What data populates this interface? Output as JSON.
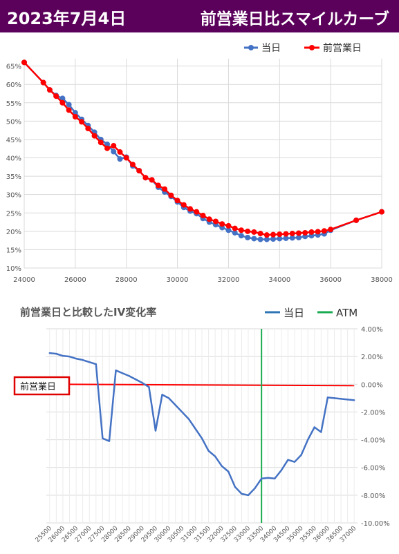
{
  "header": {
    "date": "2023年7月4日",
    "title": "前営業日比スマイルカーブ"
  },
  "colors": {
    "banner": "#5b005b",
    "today": "#4472c4",
    "prev": "#ff0000",
    "atm": "#1aab50",
    "iv_line": "#4472c4",
    "zero_line": "#ff0000"
  },
  "chart_data": [
    {
      "type": "line",
      "title": "",
      "legend_position": "top",
      "xlim": [
        24000,
        38000
      ],
      "ylim": [
        10,
        67
      ],
      "x_ticks": [
        "24000",
        "26000",
        "28000",
        "30000",
        "32000",
        "34000",
        "36000",
        "38000"
      ],
      "y_ticks": [
        "10%",
        "15%",
        "20%",
        "25%",
        "30%",
        "35%",
        "40%",
        "45%",
        "50%",
        "55%",
        "60%",
        "65%"
      ],
      "grid": true,
      "series": [
        {
          "name": "当日",
          "x": [
            24000,
            24750,
            25000,
            25250,
            25500,
            25750,
            26000,
            26250,
            26500,
            26750,
            27000,
            27250,
            27500,
            27750,
            28000,
            28250,
            28500,
            28750,
            29000,
            29250,
            29500,
            29750,
            30000,
            30250,
            30500,
            30750,
            31000,
            31250,
            31500,
            31750,
            32000,
            32250,
            32500,
            32750,
            33000,
            33250,
            33500,
            33750,
            34000,
            34250,
            34500,
            34750,
            35000,
            35250,
            35500,
            35750,
            36000,
            37000,
            38000
          ],
          "y": [
            66,
            60.5,
            58.5,
            57,
            56.2,
            54.5,
            52.3,
            50.5,
            48.8,
            47,
            45,
            43.7,
            41.7,
            39.7,
            40.2,
            37.8,
            36.5,
            34.6,
            34,
            32,
            30.7,
            29.5,
            28,
            26.5,
            25.5,
            24.8,
            23.5,
            22.5,
            21.8,
            21,
            20.3,
            19.6,
            18.8,
            18.3,
            18,
            17.8,
            17.8,
            17.9,
            18,
            18.1,
            18.2,
            18.3,
            18.6,
            18.8,
            19,
            19.3,
            20.3,
            23,
            25.3
          ]
        },
        {
          "name": "前営業日",
          "x": [
            24000,
            24750,
            25000,
            25250,
            25500,
            25750,
            26000,
            26250,
            26500,
            26750,
            27000,
            27250,
            27500,
            27750,
            28000,
            28250,
            28500,
            28750,
            29000,
            29250,
            29500,
            29750,
            30000,
            30250,
            30500,
            30750,
            31000,
            31250,
            31500,
            31750,
            32000,
            32250,
            32500,
            32750,
            33000,
            33250,
            33500,
            33750,
            34000,
            34250,
            34500,
            34750,
            35000,
            35250,
            35500,
            35750,
            36000,
            37000,
            38000
          ],
          "y": [
            66,
            60.5,
            58.5,
            56.8,
            55,
            53,
            51.2,
            49.8,
            48,
            46,
            44.2,
            42.6,
            43.3,
            41.6,
            40,
            38.2,
            36.5,
            34.6,
            34,
            32.5,
            31.5,
            29.8,
            28.4,
            27.2,
            26.1,
            25.3,
            24.3,
            23.3,
            22.7,
            22,
            21.5,
            20.8,
            20.3,
            20,
            19.8,
            19.4,
            19,
            19.1,
            19.2,
            19.3,
            19.4,
            19.5,
            19.6,
            19.8,
            19.9,
            20.1,
            20.5,
            23,
            25.3
          ]
        }
      ]
    },
    {
      "type": "line",
      "title": "前営業日と比較したIV変化率",
      "legend_position": "top-right",
      "categories": [
        "25500",
        "26000",
        "26500",
        "27000",
        "27500",
        "28000",
        "28500",
        "29000",
        "29500",
        "30000",
        "30500",
        "31000",
        "31500",
        "32000",
        "32500",
        "33000",
        "33500",
        "34000",
        "34500",
        "35000",
        "35500",
        "36000",
        "36500",
        "37000"
      ],
      "category_x": [
        25500,
        25750,
        26000,
        26250,
        26500,
        26750,
        27000,
        27250,
        27500,
        27750,
        28000,
        28250,
        28500,
        28750,
        29000,
        29250,
        29500,
        29750,
        30000,
        30250,
        30500,
        30750,
        31000,
        31250,
        31500,
        31750,
        32000,
        32250,
        32500,
        32750,
        33000,
        33250,
        33500,
        33750,
        34000,
        34250,
        34500,
        34750,
        35000,
        35250,
        35500,
        35750,
        36000,
        36250,
        36500,
        36750,
        37000
      ],
      "ylim": [
        -10,
        4
      ],
      "y_ticks": [
        "4.00%",
        "2.00%",
        "0.00%",
        "-2.00%",
        "-4.00%",
        "-6.00%",
        "-8.00%",
        "-10.00%"
      ],
      "grid": true,
      "reference_label": "前営業日",
      "series": [
        {
          "name": "当日",
          "x": [
            25500,
            25750,
            26000,
            26250,
            26500,
            26750,
            27000,
            27250,
            27500,
            27750,
            28000,
            28250,
            28500,
            28750,
            29000,
            29250,
            29500,
            29750,
            30000,
            30250,
            30500,
            30750,
            31000,
            31250,
            31500,
            31750,
            32000,
            32250,
            32500,
            32750,
            33000,
            33250,
            33500,
            33750,
            34000,
            34250,
            34500,
            34750,
            35000,
            35250,
            35500,
            35750,
            36000,
            36250,
            36500,
            36750,
            37000
          ],
          "y": [
            2.25,
            2.2,
            2.05,
            2.0,
            1.85,
            1.75,
            1.6,
            1.45,
            -3.9,
            -4.1,
            1.0,
            0.8,
            0.6,
            0.35,
            0.1,
            -0.2,
            -3.35,
            -0.75,
            -1.0,
            -1.5,
            -2.0,
            -2.5,
            -3.2,
            -3.9,
            -4.8,
            -5.2,
            -5.9,
            -6.3,
            -7.4,
            -7.9,
            -8.0,
            -7.5,
            -6.8,
            -6.75,
            -6.8,
            -6.2,
            -5.45,
            -5.6,
            -5.1,
            -4.0,
            -3.1,
            -3.45,
            -0.95,
            -1.0,
            -1.05,
            -1.1,
            -1.15
          ]
        },
        {
          "name": "ATM",
          "x": [
            33500,
            33500
          ],
          "y": [
            4,
            -10
          ]
        },
        {
          "name": "",
          "x": [
            25500,
            37000
          ],
          "y": [
            0.0,
            -0.1
          ]
        }
      ]
    }
  ]
}
